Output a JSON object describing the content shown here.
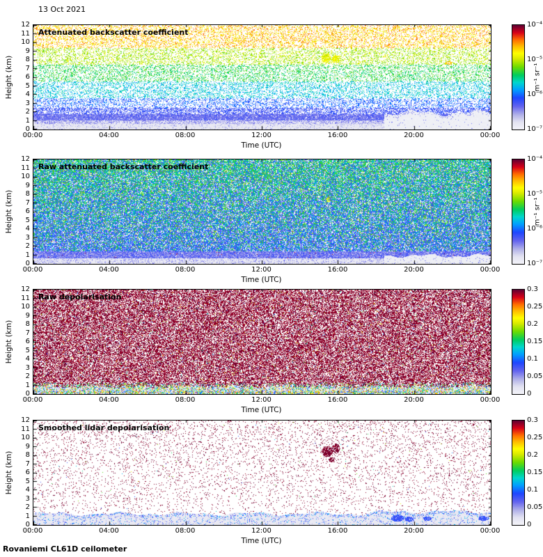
{
  "header": {
    "date": "13 Oct 2021"
  },
  "footer": {
    "label": "Rovaniemi CL61D ceilometer"
  },
  "chart_data": [
    {
      "type": "heatmap",
      "variant": "backscatter",
      "title": "Attenuated backscatter coefficient",
      "xlabel": "Time (UTC)",
      "ylabel": "Height (km)",
      "x_ticks": [
        "00:00",
        "04:00",
        "08:00",
        "12:00",
        "16:00",
        "20:00",
        "00:00"
      ],
      "x_range_hours": [
        0,
        24
      ],
      "y_ticks": [
        "12",
        "11",
        "10",
        "9",
        "8",
        "7",
        "6",
        "5",
        "4",
        "3",
        "2",
        "1",
        "0"
      ],
      "y_range_km": [
        0,
        12
      ],
      "colorbar": {
        "scale": "log",
        "min": "1e-7",
        "max": "1e-4",
        "unit": "m⁻¹ sr⁻¹",
        "tick_labels": [
          "10⁻⁴",
          "10⁻⁵",
          "10⁻⁶",
          "10⁻⁷"
        ]
      },
      "features": [
        "Dense blue boundary-layer aerosol signal from the surface up to ~2 km",
        "Noise speckle whose apparent value increases with height: blue below ~3 km, green 4-7 km, yellow/orange above ~7 km",
        "Light grey attenuated region below ~2 km from about 18:30 to 24:00",
        "High-backscatter yellow patches near 8 km around 15:30-16:30"
      ]
    },
    {
      "type": "heatmap",
      "variant": "raw_backscatter",
      "title": "Raw attenuated backscatter coefficient",
      "xlabel": "Time (UTC)",
      "ylabel": "Height (km)",
      "x_ticks": [
        "00:00",
        "04:00",
        "08:00",
        "12:00",
        "16:00",
        "20:00",
        "00:00"
      ],
      "x_range_hours": [
        0,
        24
      ],
      "y_ticks": [
        "12",
        "11",
        "10",
        "9",
        "8",
        "7",
        "6",
        "5",
        "4",
        "3",
        "2",
        "1",
        "0"
      ],
      "y_range_km": [
        0,
        12
      ],
      "colorbar": {
        "scale": "log",
        "min": "1e-7",
        "max": "1e-4",
        "unit": "m⁻¹ sr⁻¹",
        "tick_labels": [
          "10⁻⁴",
          "10⁻⁵",
          "10⁻⁶",
          "10⁻⁷"
        ]
      },
      "features": [
        "Dense blue/green speckle over the whole profile; green fraction increases with height",
        "Bright blue layer near 1 km throughout the day",
        "Light lavender region below ~1 km, expanding after ~18:30"
      ]
    },
    {
      "type": "heatmap",
      "variant": "raw_depol",
      "title": "Raw depolarisation",
      "xlabel": "Time (UTC)",
      "ylabel": "Height (km)",
      "x_ticks": [
        "00:00",
        "04:00",
        "08:00",
        "12:00",
        "16:00",
        "20:00",
        "00:00"
      ],
      "x_range_hours": [
        0,
        24
      ],
      "y_ticks": [
        "12",
        "11",
        "10",
        "9",
        "8",
        "7",
        "6",
        "5",
        "4",
        "3",
        "2",
        "1",
        "0"
      ],
      "y_range_km": [
        0,
        12
      ],
      "colorbar": {
        "scale": "linear",
        "min": 0,
        "max": 0.3,
        "tick_labels": [
          "0.3",
          "0.25",
          "0.2",
          "0.15",
          "0.1",
          "0.05",
          "0"
        ]
      },
      "features": [
        "Near-uniform dark purple high-depolarisation noise speckle above ~1 km",
        "Low-depolarisation surface layer below ~1 km with mixed green/cyan/yellow speckle"
      ]
    },
    {
      "type": "heatmap",
      "variant": "smoothed_depol",
      "title": "Smoothed lidar depolarisation",
      "xlabel": "Time (UTC)",
      "ylabel": "Height (km)",
      "x_ticks": [
        "00:00",
        "04:00",
        "08:00",
        "12:00",
        "16:00",
        "20:00",
        "00:00"
      ],
      "x_range_hours": [
        0,
        24
      ],
      "y_ticks": [
        "12",
        "11",
        "10",
        "9",
        "8",
        "7",
        "6",
        "5",
        "4",
        "3",
        "2",
        "1",
        "0"
      ],
      "y_range_km": [
        0,
        12
      ],
      "colorbar": {
        "scale": "linear",
        "min": 0,
        "max": 0.3,
        "tick_labels": [
          "0.3",
          "0.25",
          "0.2",
          "0.15",
          "0.1",
          "0.05",
          "0"
        ]
      },
      "features": [
        "Sparse dark purple noise speckle above ~1.5 km",
        "High-depolarisation patches near 8-9 km around 15:30-16:30",
        "Low-depolarisation surface layer below ~1.5 km; dark blue patches near 1 km between ~19:00 and 21:00"
      ]
    }
  ]
}
